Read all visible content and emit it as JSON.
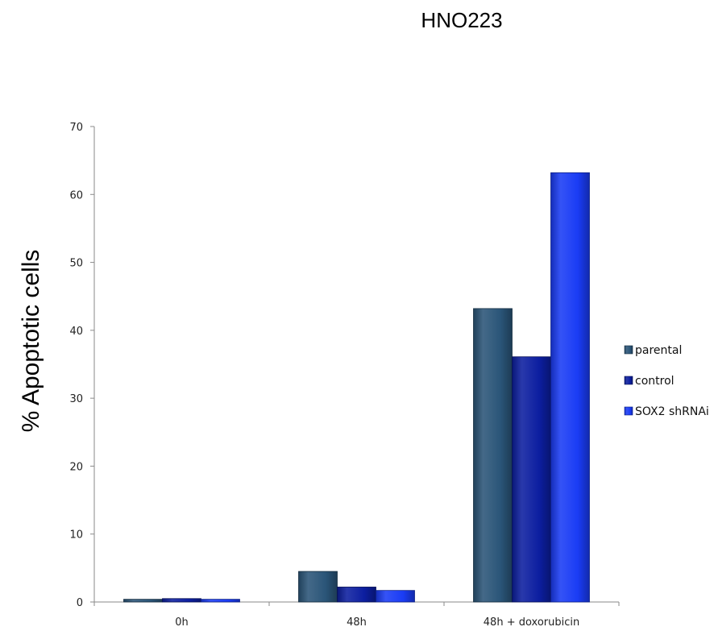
{
  "chart_data": {
    "type": "bar",
    "title": "HNO223",
    "ylabel": "% Apoptotic cells",
    "xlabel": "",
    "ylim": [
      0,
      70
    ],
    "yticks": [
      0,
      10,
      20,
      30,
      40,
      50,
      60,
      70
    ],
    "categories": [
      "0h",
      "48h",
      "48h + doxorubicin"
    ],
    "series": [
      {
        "name": "parental",
        "color": "#2a5578",
        "values": [
          0.4,
          4.5,
          43.2
        ]
      },
      {
        "name": "control",
        "color": "#0c1ea0",
        "values": [
          0.5,
          2.2,
          36.1
        ]
      },
      {
        "name": "SOX2 shRNAi",
        "color": "#1a3cf5",
        "values": [
          0.4,
          1.7,
          63.2
        ]
      }
    ],
    "legend_position": "right",
    "grid": false
  }
}
